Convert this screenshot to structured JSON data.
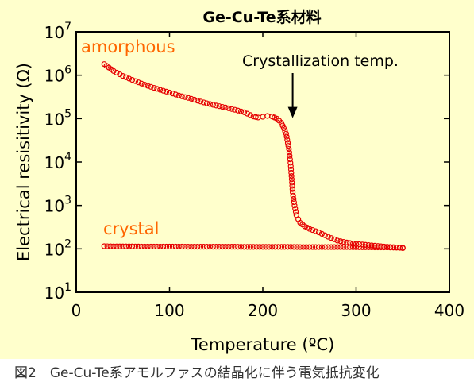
{
  "chart_data": {
    "type": "scatter",
    "title": "Ge-Cu-Te系材料",
    "xlabel": "Temperature (ºC)",
    "ylabel": "Electrical resisitivity (Ω)",
    "xlim": [
      0,
      400
    ],
    "ylim_exp": [
      1,
      7
    ],
    "y_scale": "log",
    "y_base": "10",
    "x_ticks": [
      0,
      100,
      200,
      300,
      400
    ],
    "x_tick_labels": [
      "0",
      "100",
      "200",
      "300",
      "400"
    ],
    "y_ticks": [
      1,
      2,
      3,
      4,
      5,
      6,
      7
    ],
    "grid": false,
    "marker_color": "#e60000",
    "label_color": "#ff6600",
    "series": [
      {
        "name": "amorphous",
        "x": [
          30,
          40,
          50,
          60,
          70,
          80,
          90,
          100,
          110,
          120,
          130,
          140,
          150,
          160,
          170,
          180,
          190,
          195,
          200,
          205,
          210,
          215,
          220,
          225,
          228,
          230,
          232,
          234,
          236,
          238,
          240,
          245,
          250,
          260,
          270,
          280,
          290,
          300,
          310,
          320,
          330,
          340,
          350
        ],
        "y": [
          1800000,
          1250000,
          960000,
          780000,
          640000,
          540000,
          460000,
          400000,
          340000,
          300000,
          260000,
          225000,
          200000,
          180000,
          160000,
          140000,
          112000,
          106000,
          110000,
          115000,
          112000,
          100000,
          80000,
          45000,
          20000,
          8000,
          2000,
          1000,
          600,
          480,
          400,
          330,
          290,
          240,
          190,
          155,
          140,
          130,
          124,
          118,
          113,
          109,
          104
        ]
      },
      {
        "name": "crystal",
        "x": [
          30,
          40,
          50,
          60,
          70,
          80,
          90,
          100,
          110,
          120,
          130,
          140,
          150,
          160,
          170,
          180,
          190,
          200,
          210,
          220,
          230,
          240,
          250,
          260,
          270,
          280,
          290,
          300,
          310,
          320,
          330,
          340,
          350
        ],
        "y": [
          115,
          114,
          114,
          114,
          113,
          113,
          113,
          113,
          113,
          112,
          112,
          112,
          112,
          112,
          112,
          111,
          111,
          111,
          111,
          111,
          111,
          110,
          110,
          110,
          110,
          110,
          110,
          109,
          109,
          108,
          108,
          107,
          106
        ]
      }
    ],
    "annotations": [
      {
        "text": "Crystallization temp.",
        "x": 232,
        "y": 80000
      }
    ]
  },
  "caption": "図2　Ge-Cu-Te系アモルファスの結晶化に伴う電気抵抗変化"
}
